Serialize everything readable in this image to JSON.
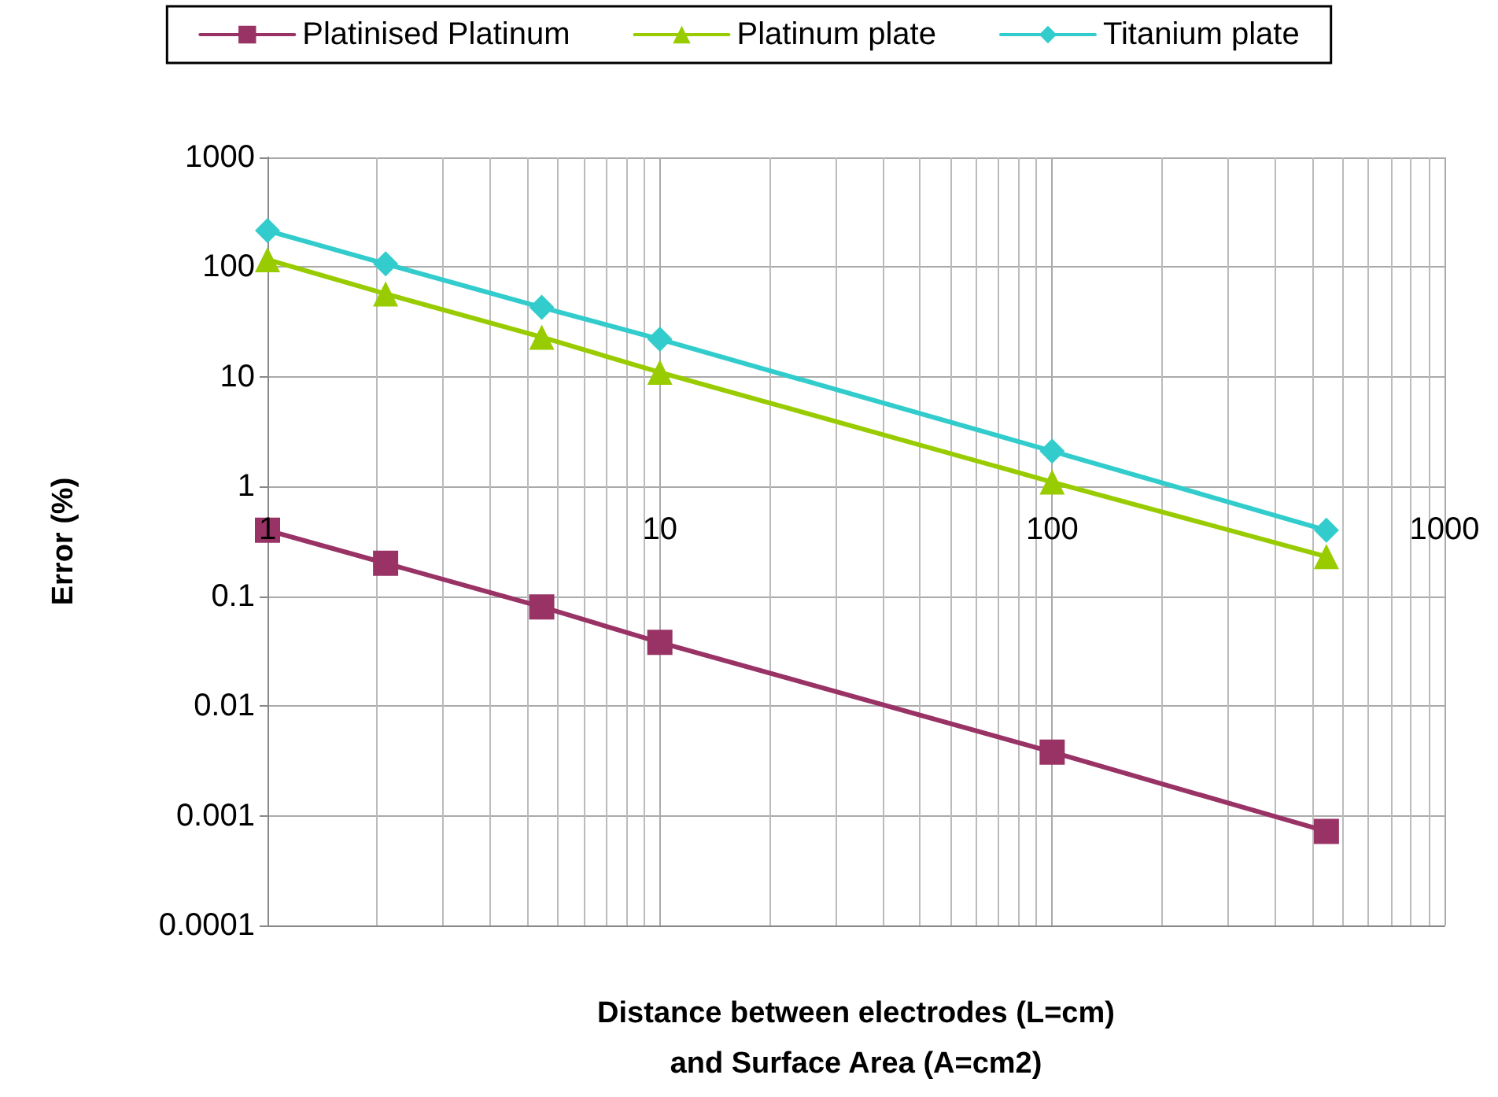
{
  "chart_data": {
    "type": "line",
    "xlabel": "Distance between electrodes (L=cm)\nand Surface Area (A=cm2)",
    "ylabel": "Error (%)",
    "log": "xy",
    "x": [
      1,
      2,
      5,
      10,
      100,
      500
    ],
    "xlim": [
      1,
      1000
    ],
    "xticks": [
      1,
      10,
      100,
      1000
    ],
    "ylim": [
      0.0001,
      1000
    ],
    "yticks": [
      0.0001,
      0.001,
      0.01,
      0.1,
      1,
      10,
      100,
      1000
    ],
    "grid": true,
    "legend": "top",
    "line_style": "solid",
    "series": [
      {
        "name": "Platinised Platinum",
        "color": "#993366",
        "marker": "square",
        "values": [
          0.4,
          0.2,
          0.08,
          0.038,
          0.0038,
          0.00072
        ]
      },
      {
        "name": "Platinum plate",
        "color": "#99cc00",
        "marker": "triangle",
        "values": [
          117,
          57,
          23,
          11,
          1.1,
          0.23
        ]
      },
      {
        "name": "Titanium plate",
        "color": "#33cccc",
        "marker": "diamond",
        "values": [
          215,
          107,
          43,
          22,
          2.1,
          0.4
        ]
      }
    ]
  }
}
